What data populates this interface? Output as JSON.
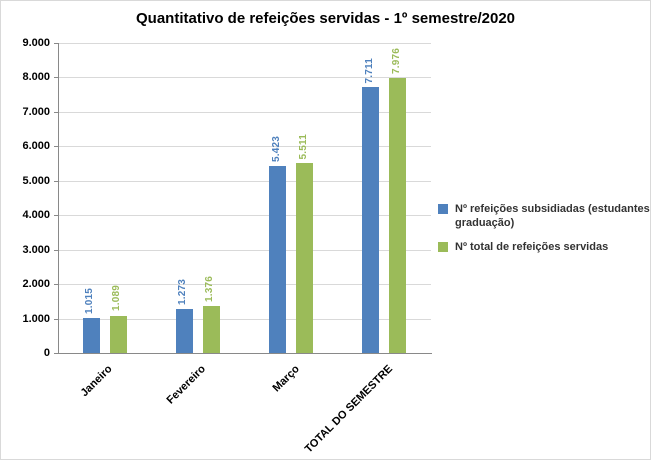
{
  "chart_data": {
    "type": "bar",
    "title": "Quantitativo de refeições servidas - 1º semestre/2020",
    "categories": [
      "Janeiro",
      "Fevereiro",
      "Março",
      "TOTAL DO SEMESTRE"
    ],
    "series": [
      {
        "name": "Nº refeições subsidiadas (estudantes graduação)",
        "name_lines": [
          "Nº refeições subsidiadas (estudantes",
          "graduação)"
        ],
        "color": "#4F81BD",
        "values": [
          1015,
          1273,
          5423,
          7711
        ],
        "labels": [
          "1.015",
          "1.273",
          "5.423",
          "7.711"
        ]
      },
      {
        "name": "Nº total de refeições servidas",
        "name_lines": [
          "Nº total de refeições servidas"
        ],
        "color": "#9BBB59",
        "values": [
          1089,
          1376,
          5511,
          7976
        ],
        "labels": [
          "1.089",
          "1.376",
          "5.511",
          "7.976"
        ]
      }
    ],
    "xlabel": "",
    "ylabel": "",
    "ylim": [
      0,
      9000
    ],
    "ytick_step": 1000,
    "ytick_labels": [
      "0",
      "1.000",
      "2.000",
      "3.000",
      "4.000",
      "5.000",
      "6.000",
      "7.000",
      "8.000",
      "9.000"
    ],
    "grid": true,
    "legend_position": "right",
    "data_label_orientation": "vertical",
    "x_label_rotation_deg": -45
  }
}
